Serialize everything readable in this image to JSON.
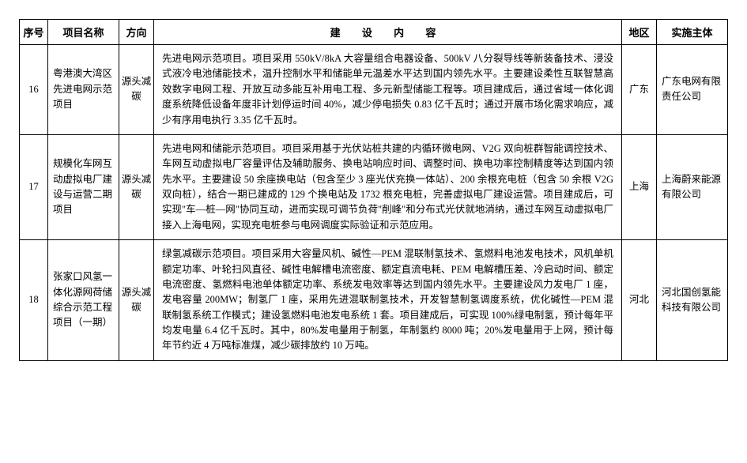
{
  "headers": {
    "num": "序号",
    "name": "项目名称",
    "dir": "方向",
    "content": "建 设 内 容",
    "region": "地区",
    "org": "实施主体"
  },
  "rows": [
    {
      "num": "16",
      "name": "粤港澳大湾区先进电网示范项目",
      "dir": "源头减碳",
      "content": "先进电网示范项目。项目采用 550kV/8kA 大容量组合电器设备、500kV 八分裂导线等新装备技术、浸没式液冷电池储能技术，温升控制水平和储能单元温差水平达到国内领先水平。主要建设柔性互联智慧高效数字电网工程、开放互动多能互补用电工程、多元新型储能工程等。项目建成后，通过省域一体化调度系统降低设备年度非计划停运时间 40%，减少停电损失 0.83 亿千瓦时；通过开展市场化需求响应，减少有序用电执行 3.35 亿千瓦时。",
      "region": "广东",
      "org": "广东电网有限责任公司"
    },
    {
      "num": "17",
      "name": "规模化车网互动虚拟电厂建设与运营二期项目",
      "dir": "源头减碳",
      "content": "先进电网和储能示范项目。项目采用基于光伏站桩共建的内循环微电网、V2G 双向桩群智能调控技术、车网互动虚拟电厂容量评估及辅助服务、换电站响应时间、调整时间、换电功率控制精度等达到国内领先水平。主要建设 50 余座换电站（包含至少 3 座光伏充换一体站）、200 余根充电桩（包含 50 余根 V2G 双向桩），结合一期已建成的 129 个换电站及 1732 根充电桩，完善虚拟电厂建设运营。项目建成后，可实现\"车—桩—网\"协同互动，进而实现可调节负荷\"削峰\"和分布式光伏就地消纳，通过车网互动虚拟电厂接入上海电网，实现充电桩参与电网调度实际验证和示范应用。",
      "region": "上海",
      "org": "上海蔚来能源有限公司"
    },
    {
      "num": "18",
      "name": "张家口风氢一体化源网荷储综合示范工程项目（一期）",
      "dir": "源头减碳",
      "content": "绿氢减碳示范项目。项目采用大容量风机、碱性—PEM 混联制氢技术、氢燃料电池发电技术，风机单机额定功率、叶轮扫风直径、碱性电解槽电流密度、额定直流电耗、PEM 电解槽压差、冷启动时间、额定电流密度、氢燃料电池单体额定功率、系统发电效率等达到国内领先水平。主要建设风力发电厂 1 座，发电容量 200MW；制氢厂 1 座，采用先进混联制氢技术，开发智慧制氢调度系统，优化碱性—PEM 混联制氢系统工作模式；建设氢燃料电池发电系统 1 套。项目建成后，可实现 100%绿电制氢，预计每年平均发电量 6.4 亿千瓦时。其中，80%发电量用于制氢，年制氢约 8000 吨；20%发电量用于上网，预计每年节约近 4 万吨标准煤，减少碳排放约 10 万吨。",
      "region": "河北",
      "org": "河北国创氢能科技有限公司"
    }
  ]
}
